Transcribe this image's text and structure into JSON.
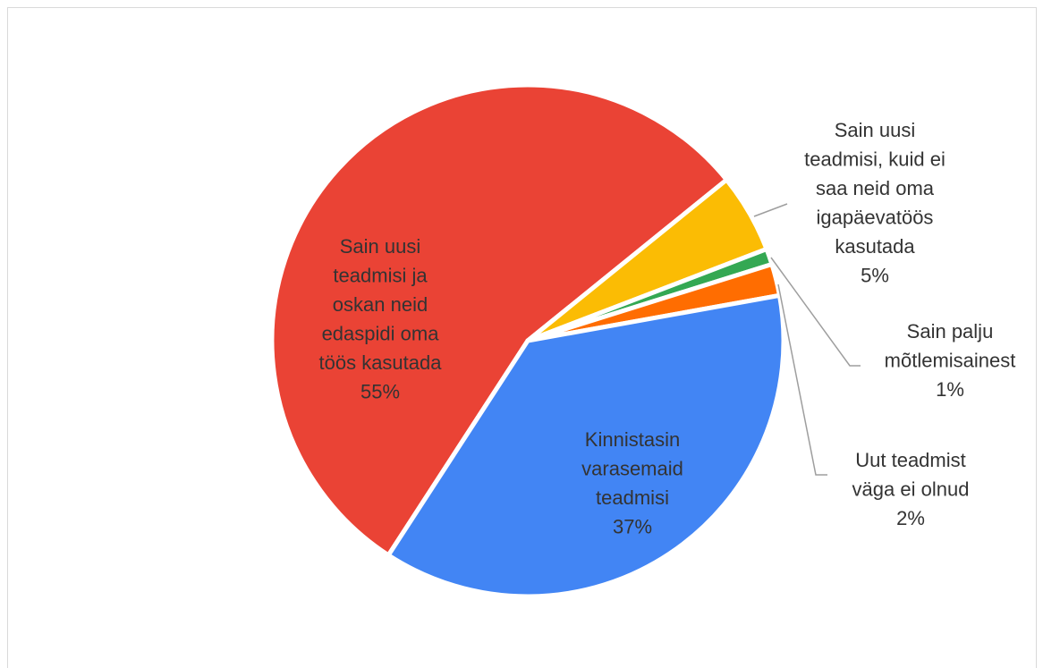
{
  "chart_data": {
    "type": "pie",
    "categories": [
      "Sain uusi teadmisi ja oskan neid edaspidi oma töös kasutada",
      "Sain uusi teadmisi, kuid ei saa neid oma igapäevatöös kasutada",
      "Sain palju mõtlemisainest",
      "Uut teadmist väga ei olnud",
      "Kinnistasin varasemaid teadmisi"
    ],
    "values": [
      55,
      5,
      1,
      2,
      37
    ],
    "value_labels": [
      "55%",
      "5%",
      "1%",
      "2%",
      "37%"
    ],
    "colors": [
      "#ea4335",
      "#fbbc04",
      "#34a853",
      "#ff6d01",
      "#4285f4"
    ]
  }
}
